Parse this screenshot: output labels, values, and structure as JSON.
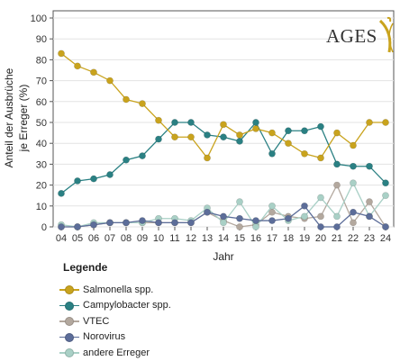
{
  "logo": {
    "text": "AGES"
  },
  "legend": {
    "title": "Legende",
    "items": [
      {
        "label": "Salmonella spp.",
        "color": "#c9a31d"
      },
      {
        "label": "Campylobacter spp.",
        "color": "#2a8083"
      },
      {
        "label": "VTEC",
        "color": "#b3a89e"
      },
      {
        "label": "Norovirus",
        "color": "#5c6d99"
      },
      {
        "label": "andere Erreger",
        "color": "#a9d0c6"
      }
    ]
  },
  "chart_data": {
    "type": "line",
    "title": "",
    "xlabel": "Jahr",
    "ylabel": [
      "Anteil der Ausbrüche",
      "je Erreger (%)"
    ],
    "ylim": [
      0,
      100
    ],
    "yticks": [
      0,
      10,
      20,
      30,
      40,
      50,
      60,
      70,
      80,
      90,
      100
    ],
    "grid": "horizontal",
    "legend_position": "bottom",
    "categories": [
      "04",
      "05",
      "06",
      "07",
      "08",
      "09",
      "10",
      "11",
      "12",
      "13",
      "14",
      "15",
      "16",
      "17",
      "18",
      "19",
      "20",
      "21",
      "22",
      "23",
      "24"
    ],
    "series": [
      {
        "name": "Salmonella spp.",
        "color": "#c9a31d",
        "values": [
          83,
          77,
          74,
          70,
          61,
          59,
          51,
          43,
          43,
          33,
          49,
          44,
          47,
          45,
          40,
          35,
          33,
          45,
          39,
          50,
          50
        ]
      },
      {
        "name": "Campylobacter spp.",
        "color": "#2a8083",
        "values": [
          16,
          22,
          23,
          25,
          32,
          34,
          42,
          50,
          50,
          44,
          43,
          41,
          50,
          35,
          46,
          46,
          48,
          30,
          29,
          29,
          21
        ]
      },
      {
        "name": "VTEC",
        "color": "#b3a89e",
        "values": [
          0,
          0,
          1,
          2,
          2,
          2,
          2,
          2,
          2,
          7,
          3,
          0,
          1,
          7,
          5,
          4,
          5,
          20,
          2,
          12,
          0
        ]
      },
      {
        "name": "Norovirus",
        "color": "#5c6d99",
        "values": [
          0,
          0,
          1,
          2,
          2,
          3,
          2,
          2,
          2,
          7,
          5,
          4,
          3,
          3,
          4,
          10,
          0,
          0,
          7,
          5,
          0
        ]
      },
      {
        "name": "andere Erreger",
        "color": "#a9d0c6",
        "values": [
          1,
          0,
          2,
          2,
          2,
          2,
          4,
          4,
          3,
          9,
          2,
          12,
          0,
          10,
          3,
          5,
          14,
          5,
          21,
          5,
          15
        ]
      }
    ]
  }
}
